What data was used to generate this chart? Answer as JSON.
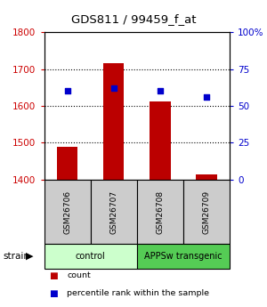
{
  "title": "GDS811 / 99459_f_at",
  "samples": [
    "GSM26706",
    "GSM26707",
    "GSM26708",
    "GSM26709"
  ],
  "counts": [
    1490,
    1715,
    1613,
    1413
  ],
  "percentiles": [
    60,
    62,
    60,
    56
  ],
  "ylim_left": [
    1400,
    1800
  ],
  "ylim_right": [
    0,
    100
  ],
  "yticks_left": [
    1400,
    1500,
    1600,
    1700,
    1800
  ],
  "yticks_right": [
    0,
    25,
    50,
    75,
    100
  ],
  "ytick_labels_right": [
    "0",
    "25",
    "50",
    "75",
    "100%"
  ],
  "bar_color": "#bb0000",
  "dot_color": "#0000cc",
  "groups": [
    {
      "label": "control",
      "samples": [
        0,
        1
      ],
      "color": "#ccffcc"
    },
    {
      "label": "APPSw transgenic",
      "samples": [
        2,
        3
      ],
      "color": "#55cc55"
    }
  ],
  "strain_label": "strain",
  "legend_items": [
    {
      "color": "#bb0000",
      "label": "count"
    },
    {
      "color": "#0000cc",
      "label": "percentile rank within the sample"
    }
  ],
  "background_color": "#ffffff",
  "tick_label_color_left": "#cc0000",
  "tick_label_color_right": "#0000cc"
}
